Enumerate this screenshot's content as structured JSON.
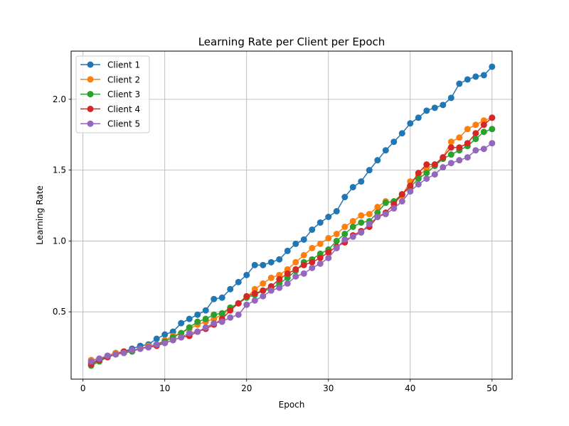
{
  "chart_data": {
    "type": "line",
    "title": "Learning Rate per Client per Epoch",
    "xlabel": "Epoch",
    "ylabel": "Learning Rate",
    "xlim": [
      -1.45,
      52.45
    ],
    "ylim": [
      0.025,
      2.34
    ],
    "xticks": [
      0,
      10,
      20,
      30,
      40,
      50
    ],
    "yticks": [
      0.5,
      1.0,
      1.5,
      2.0
    ],
    "grid": true,
    "legend_position": "upper-left",
    "x": [
      1,
      2,
      3,
      4,
      5,
      6,
      7,
      8,
      9,
      10,
      11,
      12,
      13,
      14,
      15,
      16,
      17,
      18,
      19,
      20,
      21,
      22,
      23,
      24,
      25,
      26,
      27,
      28,
      29,
      30,
      31,
      32,
      33,
      34,
      35,
      36,
      37,
      38,
      39,
      40,
      41,
      42,
      43,
      44,
      45,
      46,
      47,
      48,
      49,
      50
    ],
    "series": [
      {
        "name": "Client 1",
        "color": "#1f77b4",
        "values": [
          0.14,
          0.16,
          0.19,
          0.21,
          0.22,
          0.24,
          0.26,
          0.27,
          0.31,
          0.34,
          0.36,
          0.42,
          0.45,
          0.48,
          0.51,
          0.59,
          0.6,
          0.66,
          0.71,
          0.76,
          0.83,
          0.83,
          0.85,
          0.87,
          0.93,
          0.98,
          1.01,
          1.08,
          1.13,
          1.17,
          1.21,
          1.31,
          1.38,
          1.42,
          1.5,
          1.57,
          1.64,
          1.7,
          1.76,
          1.83,
          1.87,
          1.92,
          1.94,
          1.96,
          2.01,
          2.11,
          2.14,
          2.16,
          2.17,
          2.23
        ]
      },
      {
        "name": "Client 2",
        "color": "#ff7f0e",
        "values": [
          0.16,
          0.17,
          0.19,
          0.21,
          0.22,
          0.23,
          0.24,
          0.26,
          0.27,
          0.3,
          0.33,
          0.35,
          0.38,
          0.41,
          0.43,
          0.45,
          0.48,
          0.52,
          0.56,
          0.6,
          0.66,
          0.7,
          0.74,
          0.76,
          0.8,
          0.85,
          0.9,
          0.95,
          0.98,
          1.02,
          1.05,
          1.1,
          1.14,
          1.18,
          1.19,
          1.24,
          1.28,
          1.27,
          1.32,
          1.42,
          1.46,
          1.51,
          1.54,
          1.59,
          1.7,
          1.73,
          1.79,
          1.82,
          1.85,
          1.87
        ]
      },
      {
        "name": "Client 3",
        "color": "#2ca02c",
        "values": [
          0.12,
          0.15,
          0.18,
          0.2,
          0.21,
          0.22,
          0.24,
          0.25,
          0.27,
          0.29,
          0.32,
          0.35,
          0.39,
          0.43,
          0.45,
          0.48,
          0.49,
          0.53,
          0.56,
          0.6,
          0.62,
          0.65,
          0.66,
          0.7,
          0.74,
          0.79,
          0.85,
          0.87,
          0.91,
          0.94,
          1.0,
          1.05,
          1.1,
          1.13,
          1.14,
          1.2,
          1.27,
          1.28,
          1.33,
          1.38,
          1.44,
          1.48,
          1.53,
          1.58,
          1.61,
          1.64,
          1.67,
          1.72,
          1.77,
          1.79
        ]
      },
      {
        "name": "Client 4",
        "color": "#d62728",
        "values": [
          0.13,
          0.16,
          0.18,
          0.2,
          0.22,
          0.23,
          0.24,
          0.25,
          0.26,
          0.28,
          0.3,
          0.32,
          0.33,
          0.36,
          0.38,
          0.41,
          0.45,
          0.51,
          0.56,
          0.61,
          0.63,
          0.65,
          0.68,
          0.73,
          0.77,
          0.8,
          0.83,
          0.85,
          0.88,
          0.92,
          0.96,
          0.99,
          1.04,
          1.07,
          1.1,
          1.17,
          1.2,
          1.26,
          1.33,
          1.39,
          1.48,
          1.54,
          1.54,
          1.59,
          1.66,
          1.66,
          1.69,
          1.76,
          1.82,
          1.87
        ]
      },
      {
        "name": "Client 5",
        "color": "#9467bd",
        "values": [
          0.15,
          0.17,
          0.19,
          0.2,
          0.21,
          0.23,
          0.24,
          0.25,
          0.27,
          0.28,
          0.3,
          0.32,
          0.35,
          0.36,
          0.39,
          0.42,
          0.43,
          0.46,
          0.48,
          0.55,
          0.58,
          0.61,
          0.65,
          0.67,
          0.7,
          0.75,
          0.77,
          0.81,
          0.84,
          0.88,
          0.95,
          1.01,
          1.03,
          1.06,
          1.12,
          1.17,
          1.19,
          1.23,
          1.28,
          1.35,
          1.4,
          1.44,
          1.47,
          1.52,
          1.55,
          1.57,
          1.59,
          1.64,
          1.65,
          1.69
        ]
      }
    ]
  }
}
